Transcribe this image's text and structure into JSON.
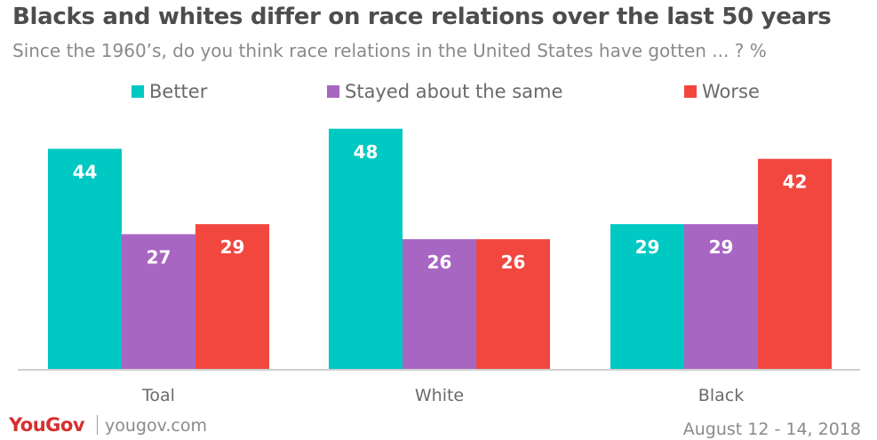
{
  "chart_data": {
    "type": "bar",
    "title": "Blacks and whites differ on race relations over the last 50 years",
    "subtitle": "Since the 1960’s, do you think race relations in the United States have gotten ... ? %",
    "categories": [
      "Toal",
      "White",
      "Black"
    ],
    "series": [
      {
        "name": "Better",
        "color": "#00c8c2",
        "values": [
          44,
          48,
          29
        ]
      },
      {
        "name": "Stayed about the same",
        "color": "#a866c3",
        "values": [
          27,
          26,
          29
        ]
      },
      {
        "name": "Worse",
        "color": "#f2473f",
        "values": [
          29,
          26,
          42
        ]
      }
    ],
    "ylim": [
      0,
      50
    ],
    "grid": false,
    "legend_position": "top",
    "data_label_color": "#ffffff"
  },
  "footer": {
    "brand": "YouGov",
    "site": "yougov.com",
    "date": "August 12 - 14, 2018"
  }
}
